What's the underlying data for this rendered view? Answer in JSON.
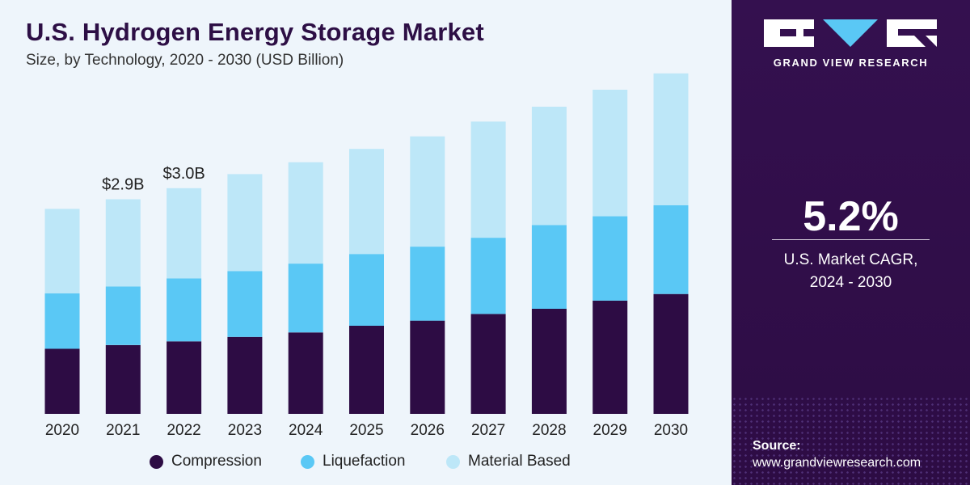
{
  "header": {
    "title": "U.S. Hydrogen Energy Storage Market",
    "subtitle": "Size, by Technology, 2020 - 2030 (USD Billion)"
  },
  "sidebar": {
    "brand": "GRAND VIEW RESEARCH",
    "cagr_value": "5.2%",
    "cagr_label_line1": "U.S. Market CAGR,",
    "cagr_label_line2": "2024 - 2030",
    "source_label": "Source:",
    "source_url": "www.grandviewresearch.com",
    "colors": {
      "background": "#33104d",
      "text": "#ffffff"
    }
  },
  "chart_data": {
    "type": "bar",
    "stacked": true,
    "title": "U.S. Hydrogen Energy Storage Market",
    "subtitle": "Size, by Technology, 2020 - 2030 (USD Billion)",
    "xlabel": "",
    "ylabel": "",
    "ylim": [
      0,
      4.5
    ],
    "grid": false,
    "legend_position": "bottom",
    "categories": [
      "2020",
      "2021",
      "2022",
      "2023",
      "2024",
      "2025",
      "2026",
      "2027",
      "2028",
      "2029",
      "2030"
    ],
    "series": [
      {
        "name": "Compression",
        "color": "#2d0c44",
        "values": [
          0.88,
          0.93,
          0.98,
          1.04,
          1.1,
          1.19,
          1.26,
          1.35,
          1.42,
          1.53,
          1.62
        ]
      },
      {
        "name": "Liquefaction",
        "color": "#5ac8f5",
        "values": [
          0.75,
          0.79,
          0.85,
          0.89,
          0.93,
          0.97,
          1.0,
          1.03,
          1.13,
          1.14,
          1.2
        ]
      },
      {
        "name": "Material Based",
        "color": "#bde7f8",
        "values": [
          1.14,
          1.18,
          1.22,
          1.31,
          1.37,
          1.42,
          1.49,
          1.57,
          1.6,
          1.71,
          1.78
        ]
      }
    ],
    "annotations": [
      {
        "category": "2021",
        "label": "$2.9B"
      },
      {
        "category": "2022",
        "label": "$3.0B"
      }
    ]
  }
}
